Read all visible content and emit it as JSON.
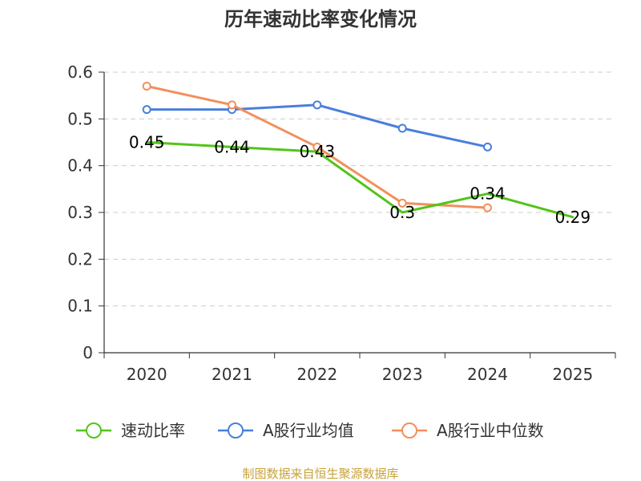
{
  "chart_data": {
    "type": "line",
    "title": "历年速动比率变化情况",
    "categories": [
      "2020",
      "2021",
      "2022",
      "2023",
      "2024",
      "2025"
    ],
    "y_ticks": [
      "0",
      "0.1",
      "0.2",
      "0.3",
      "0.4",
      "0.5",
      "0.6"
    ],
    "ylim": [
      0,
      0.6
    ],
    "grid": true,
    "legend_position": "bottom",
    "series": [
      {
        "name": "速动比率",
        "color": "#52c41a",
        "values": [
          0.45,
          0.44,
          0.43,
          0.3,
          0.34,
          0.29
        ],
        "labels": [
          "0.45",
          "0.44",
          "0.43",
          "0.3",
          "0.34",
          "0.29"
        ]
      },
      {
        "name": "A股行业均值",
        "color": "#4a7fdb",
        "values": [
          0.52,
          0.52,
          0.53,
          0.48,
          0.44,
          null
        ]
      },
      {
        "name": "A股行业中位数",
        "color": "#f28f5c",
        "values": [
          0.57,
          0.53,
          0.44,
          0.32,
          0.31,
          null
        ]
      }
    ]
  },
  "source": {
    "text": "制图数据来自恒生聚源数据库",
    "color": "#c8a23a"
  }
}
